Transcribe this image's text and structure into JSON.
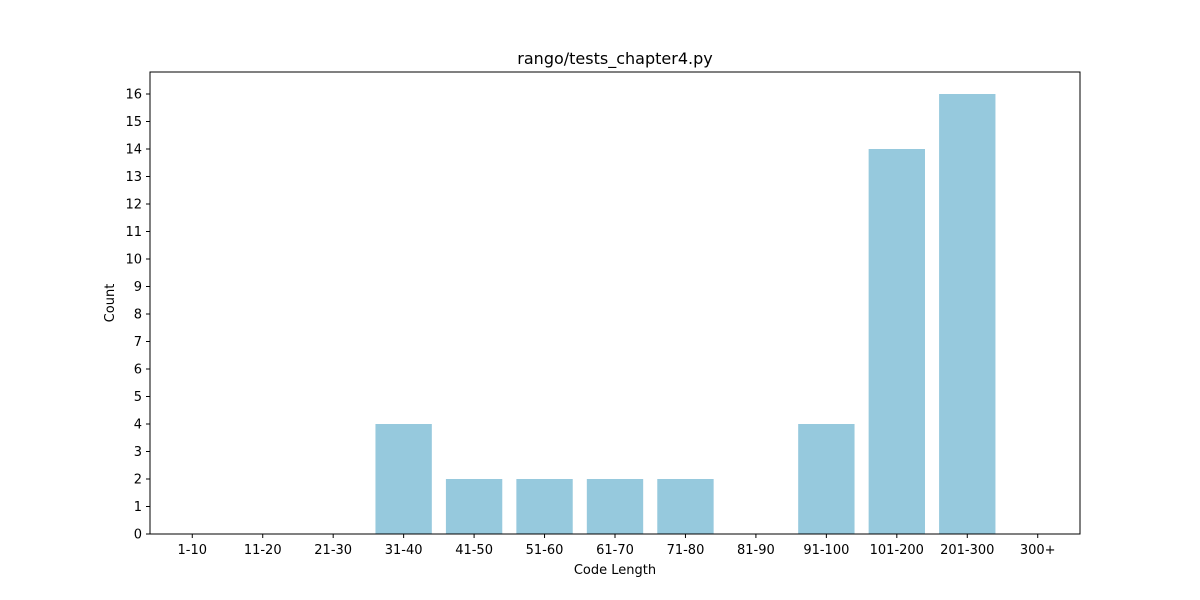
{
  "chart_data": {
    "type": "bar",
    "title": "rango/tests_chapter4.py",
    "xlabel": "Code Length",
    "ylabel": "Count",
    "categories": [
      "1-10",
      "11-20",
      "21-30",
      "31-40",
      "41-50",
      "51-60",
      "61-70",
      "71-80",
      "81-90",
      "91-100",
      "101-200",
      "201-300",
      "300+"
    ],
    "values": [
      0,
      0,
      0,
      4,
      2,
      2,
      2,
      2,
      0,
      4,
      14,
      16,
      0
    ],
    "ylim": [
      0,
      16.8
    ],
    "yticks": [
      0,
      1,
      2,
      3,
      4,
      5,
      6,
      7,
      8,
      9,
      10,
      11,
      12,
      13,
      14,
      15,
      16
    ],
    "bar_color": "#96c9dd",
    "grid": false,
    "legend": "none"
  }
}
